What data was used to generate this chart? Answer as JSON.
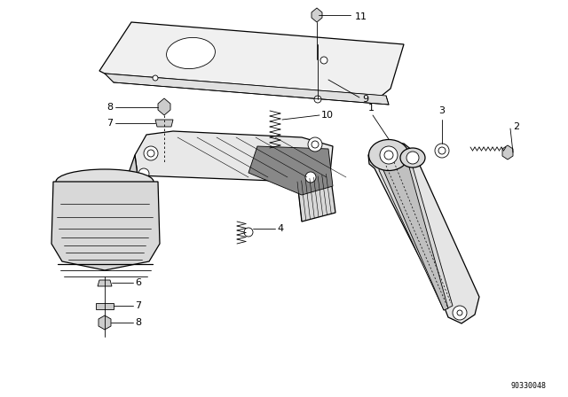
{
  "background_color": "#ffffff",
  "diagram_id": "90330048",
  "font_size": 8,
  "text_color": "#000000",
  "line_color": "#000000",
  "lw_thin": 0.6,
  "lw_med": 0.9,
  "lw_thick": 1.2
}
